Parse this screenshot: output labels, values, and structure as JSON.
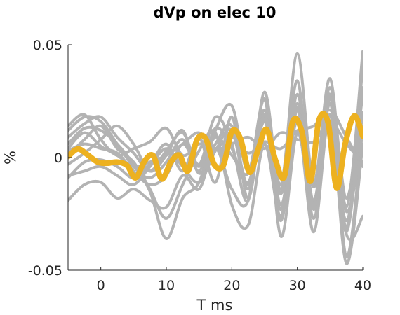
{
  "chart_data": {
    "type": "line",
    "title": "dVp on elec 10",
    "xlabel": "T ms",
    "ylabel": "%",
    "xlim": [
      -5,
      40
    ],
    "ylim": [
      -0.05,
      0.05
    ],
    "xticks": [
      0,
      10,
      20,
      30,
      40
    ],
    "xtick_labels": [
      "0",
      "10",
      "20",
      "30",
      "40"
    ],
    "yticks": [
      -0.05,
      0,
      0.05
    ],
    "ytick_labels": [
      "-0.05",
      "0",
      "0.05"
    ],
    "grid": false,
    "colors": {
      "trials": "#b3b3b3",
      "mean": "#edb120"
    },
    "mean_series": {
      "x": [
        -5,
        -3.5,
        -2,
        -0.5,
        1,
        2.5,
        4,
        5.3,
        6.7,
        8,
        9.3,
        10.7,
        12,
        13.3,
        14.7,
        16,
        17.3,
        18.7,
        20,
        21.3,
        22.7,
        24,
        25.3,
        26.7,
        28,
        29.3,
        30.7,
        32,
        33.3,
        34.7,
        36,
        37.3,
        38.7,
        40
      ],
      "values": [
        0.0005,
        0.0038,
        0.0012,
        -0.002,
        -0.0025,
        -0.002,
        -0.0035,
        -0.009,
        -0.0015,
        0.0008,
        -0.0095,
        -0.002,
        0.001,
        -0.006,
        0.008,
        0.0085,
        -0.003,
        -0.0035,
        0.0115,
        0.0085,
        -0.0065,
        0.0035,
        0.0125,
        -0.0015,
        -0.0085,
        0.016,
        0.0115,
        -0.0105,
        0.0165,
        0.0155,
        -0.0135,
        0.006,
        0.0185,
        0.0095
      ]
    },
    "trial_series": [
      {
        "x": [
          -5,
          -2.5,
          0,
          2.5,
          5,
          7.5,
          10,
          12.5,
          15,
          17.5,
          20,
          22.5,
          25,
          27.5,
          30,
          32.5,
          35,
          37.5,
          40
        ],
        "values": [
          0.012,
          0.018,
          0.016,
          0.006,
          -0.004,
          -0.009,
          -0.002,
          0.008,
          -0.006,
          0.013,
          0.004,
          -0.011,
          0.016,
          -0.014,
          0.024,
          -0.012,
          0.031,
          -0.018,
          0.028
        ]
      },
      {
        "x": [
          -5,
          -2.5,
          0,
          2.5,
          5,
          7.5,
          10,
          12.5,
          15,
          17.5,
          20,
          22.5,
          25,
          27.5,
          30,
          32.5,
          35,
          37.5,
          40
        ],
        "values": [
          0.006,
          0.013,
          0.012,
          0.006,
          -0.003,
          -0.015,
          -0.036,
          -0.018,
          -0.011,
          0.012,
          0.023,
          -0.006,
          0.026,
          -0.012,
          0.046,
          -0.011,
          0.035,
          -0.022,
          0.047
        ]
      },
      {
        "x": [
          -5,
          -2.5,
          0,
          2.5,
          5,
          7.5,
          10,
          12.5,
          15,
          17.5,
          20,
          22.5,
          25,
          27.5,
          30,
          32.5,
          35,
          37.5,
          40
        ],
        "values": [
          -0.003,
          0.002,
          0.008,
          0.014,
          0.006,
          -0.006,
          0.001,
          0.012,
          -0.007,
          0.006,
          0.014,
          -0.012,
          0.021,
          -0.021,
          0.018,
          -0.013,
          0.014,
          -0.028,
          0.02
        ]
      },
      {
        "x": [
          -5,
          -2.5,
          0,
          2.5,
          5,
          7.5,
          10,
          12.5,
          15,
          17.5,
          20,
          22.5,
          25,
          27.5,
          30,
          32.5,
          35,
          37.5,
          40
        ],
        "values": [
          -0.019,
          -0.012,
          -0.011,
          -0.018,
          -0.014,
          -0.019,
          -0.022,
          -0.008,
          -0.014,
          0.004,
          -0.014,
          -0.019,
          0.026,
          -0.035,
          0.011,
          -0.021,
          0.028,
          -0.044,
          0.014
        ]
      },
      {
        "x": [
          -5,
          -2.5,
          0,
          2.5,
          5,
          7.5,
          10,
          12.5,
          15,
          17.5,
          20,
          22.5,
          25,
          27.5,
          30,
          32.5,
          35,
          37.5,
          40
        ],
        "values": [
          -0.009,
          -0.002,
          -0.001,
          -0.004,
          -0.009,
          -0.003,
          0.006,
          -0.006,
          0.009,
          -0.011,
          0.018,
          -0.018,
          0.019,
          -0.023,
          0.028,
          -0.019,
          0.026,
          -0.024,
          0.011
        ]
      },
      {
        "x": [
          -5,
          -2.5,
          0,
          2.5,
          5,
          7.5,
          10,
          12.5,
          15,
          17.5,
          20,
          22.5,
          25,
          27.5,
          30,
          32.5,
          35,
          37.5,
          40
        ],
        "values": [
          0.014,
          0.019,
          0.008,
          0.001,
          0.004,
          0.007,
          0.013,
          0.001,
          0.006,
          0.004,
          0.009,
          0.002,
          0.007,
          0.004,
          0.012,
          0.014,
          0.021,
          0.009,
          -0.004
        ]
      },
      {
        "x": [
          -5,
          -2.5,
          0,
          2.5,
          5,
          7.5,
          10,
          12.5,
          15,
          17.5,
          20,
          22.5,
          25,
          27.5,
          30,
          32.5,
          35,
          37.5,
          40
        ],
        "values": [
          0.003,
          0.006,
          0.004,
          0.002,
          -0.006,
          -0.012,
          -0.008,
          0.006,
          -0.004,
          0.009,
          0.001,
          -0.007,
          0.018,
          -0.016,
          0.022,
          -0.027,
          0.024,
          -0.034,
          -0.026
        ]
      },
      {
        "x": [
          -5,
          -2.5,
          0,
          2.5,
          5,
          7.5,
          10,
          12.5,
          15,
          17.5,
          20,
          22.5,
          25,
          27.5,
          30,
          32.5,
          35,
          37.5,
          40
        ],
        "values": [
          0.009,
          0.015,
          0.018,
          0.009,
          0.002,
          -0.006,
          0.003,
          0.011,
          -0.003,
          0.018,
          0.006,
          -0.019,
          0.029,
          -0.016,
          0.034,
          -0.023,
          0.027,
          -0.031,
          0.041
        ]
      },
      {
        "x": [
          -5,
          -2.5,
          0,
          2.5,
          5,
          7.5,
          10,
          12.5,
          15,
          17.5,
          20,
          22.5,
          25,
          27.5,
          30,
          32.5,
          35,
          37.5,
          40
        ],
        "values": [
          0.001,
          0.008,
          0.014,
          0.004,
          -0.002,
          -0.014,
          -0.027,
          -0.012,
          0.003,
          0.011,
          -0.021,
          -0.03,
          0.006,
          -0.026,
          0.016,
          -0.033,
          0.019,
          -0.047,
          0.006
        ]
      },
      {
        "x": [
          -5,
          -2.5,
          0,
          2.5,
          5,
          7.5,
          10,
          12.5,
          15,
          17.5,
          20,
          22.5,
          25,
          27.5,
          30,
          32.5,
          35,
          37.5,
          40
        ],
        "values": [
          -0.008,
          -0.006,
          -0.004,
          -0.008,
          -0.012,
          -0.004,
          0.004,
          -0.004,
          -0.011,
          0.003,
          0.012,
          -0.014,
          0.017,
          -0.028,
          0.021,
          -0.021,
          0.024,
          -0.033,
          0.031
        ]
      },
      {
        "x": [
          -5,
          -2.5,
          0,
          2.5,
          5,
          7.5,
          10,
          12.5,
          15,
          17.5,
          20,
          22.5,
          25,
          27.5,
          30,
          32.5,
          35,
          37.5,
          40
        ],
        "values": [
          0.004,
          0.011,
          0.005,
          0.001,
          -0.004,
          -0.002,
          0.001,
          0.006,
          0.011,
          0.004,
          0.006,
          0.009,
          0.004,
          0.011,
          0.008,
          0.007,
          0.016,
          0.006,
          -0.002
        ]
      }
    ]
  }
}
